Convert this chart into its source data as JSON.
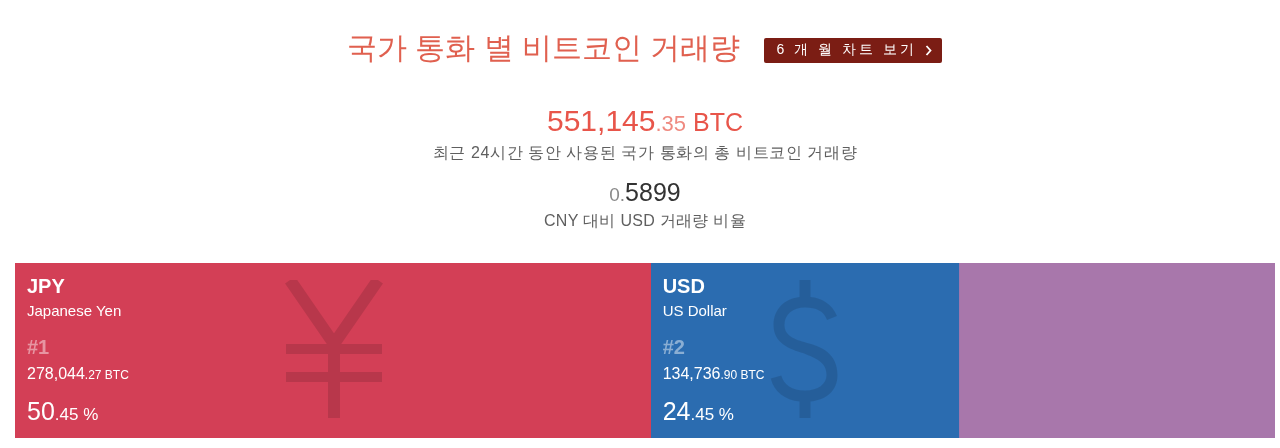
{
  "chart_data": {
    "type": "bar",
    "orientation": "horizontal",
    "stacked": true,
    "title": "국가 통화 별 비트코인 거래량",
    "categories": [
      null
    ],
    "series": [
      {
        "name": "JPY",
        "color": "#d33f56",
        "values": [
          50.45
        ],
        "value_labels": [
          "50.45 %"
        ]
      },
      {
        "name": "USD",
        "color": "#2b6cb0",
        "values": [
          24.45
        ],
        "value_labels": [
          "24.45 %"
        ]
      },
      {
        "color": "#a877ab",
        "values": [
          25.1
        ]
      }
    ],
    "xlim": [
      0,
      100
    ],
    "tick_labels": false,
    "legend": false,
    "annotations": [
      "6 개 월 차트 보기",
      "551,145.35 BTC",
      "최근 24시간 동안 사용된 국가 통화의 총 비트코인 거래량",
      "0.5899",
      "CNY 대비 USD 거래량 비율",
      "Japanese Yen",
      "#1",
      "278,044.27 BTC",
      "US Dollar",
      "#2",
      "134,736.90 BTC"
    ]
  }
}
